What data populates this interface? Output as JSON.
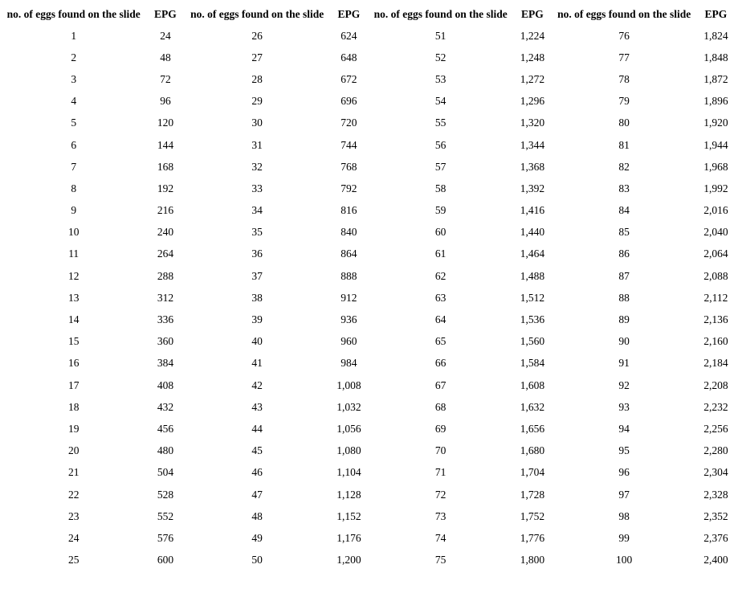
{
  "table": {
    "headers": [
      "no. of eggs found on the slide",
      "EPG",
      "no. of eggs found on the slide",
      "EPG",
      "no. of eggs found on the slide",
      "EPG",
      "no. of eggs found on the slide",
      "EPG"
    ],
    "rows": [
      [
        "1",
        "24",
        "26",
        "624",
        "51",
        "1,224",
        "76",
        "1,824"
      ],
      [
        "2",
        "48",
        "27",
        "648",
        "52",
        "1,248",
        "77",
        "1,848"
      ],
      [
        "3",
        "72",
        "28",
        "672",
        "53",
        "1,272",
        "78",
        "1,872"
      ],
      [
        "4",
        "96",
        "29",
        "696",
        "54",
        "1,296",
        "79",
        "1,896"
      ],
      [
        "5",
        "120",
        "30",
        "720",
        "55",
        "1,320",
        "80",
        "1,920"
      ],
      [
        "6",
        "144",
        "31",
        "744",
        "56",
        "1,344",
        "81",
        "1,944"
      ],
      [
        "7",
        "168",
        "32",
        "768",
        "57",
        "1,368",
        "82",
        "1,968"
      ],
      [
        "8",
        "192",
        "33",
        "792",
        "58",
        "1,392",
        "83",
        "1,992"
      ],
      [
        "9",
        "216",
        "34",
        "816",
        "59",
        "1,416",
        "84",
        "2,016"
      ],
      [
        "10",
        "240",
        "35",
        "840",
        "60",
        "1,440",
        "85",
        "2,040"
      ],
      [
        "11",
        "264",
        "36",
        "864",
        "61",
        "1,464",
        "86",
        "2,064"
      ],
      [
        "12",
        "288",
        "37",
        "888",
        "62",
        "1,488",
        "87",
        "2,088"
      ],
      [
        "13",
        "312",
        "38",
        "912",
        "63",
        "1,512",
        "88",
        "2,112"
      ],
      [
        "14",
        "336",
        "39",
        "936",
        "64",
        "1,536",
        "89",
        "2,136"
      ],
      [
        "15",
        "360",
        "40",
        "960",
        "65",
        "1,560",
        "90",
        "2,160"
      ],
      [
        "16",
        "384",
        "41",
        "984",
        "66",
        "1,584",
        "91",
        "2,184"
      ],
      [
        "17",
        "408",
        "42",
        "1,008",
        "67",
        "1,608",
        "92",
        "2,208"
      ],
      [
        "18",
        "432",
        "43",
        "1,032",
        "68",
        "1,632",
        "93",
        "2,232"
      ],
      [
        "19",
        "456",
        "44",
        "1,056",
        "69",
        "1,656",
        "94",
        "2,256"
      ],
      [
        "20",
        "480",
        "45",
        "1,080",
        "70",
        "1,680",
        "95",
        "2,280"
      ],
      [
        "21",
        "504",
        "46",
        "1,104",
        "71",
        "1,704",
        "96",
        "2,304"
      ],
      [
        "22",
        "528",
        "47",
        "1,128",
        "72",
        "1,728",
        "97",
        "2,328"
      ],
      [
        "23",
        "552",
        "48",
        "1,152",
        "73",
        "1,752",
        "98",
        "2,352"
      ],
      [
        "24",
        "576",
        "49",
        "1,176",
        "74",
        "1,776",
        "99",
        "2,376"
      ],
      [
        "25",
        "600",
        "50",
        "1,200",
        "75",
        "1,800",
        "100",
        "2,400"
      ]
    ]
  }
}
